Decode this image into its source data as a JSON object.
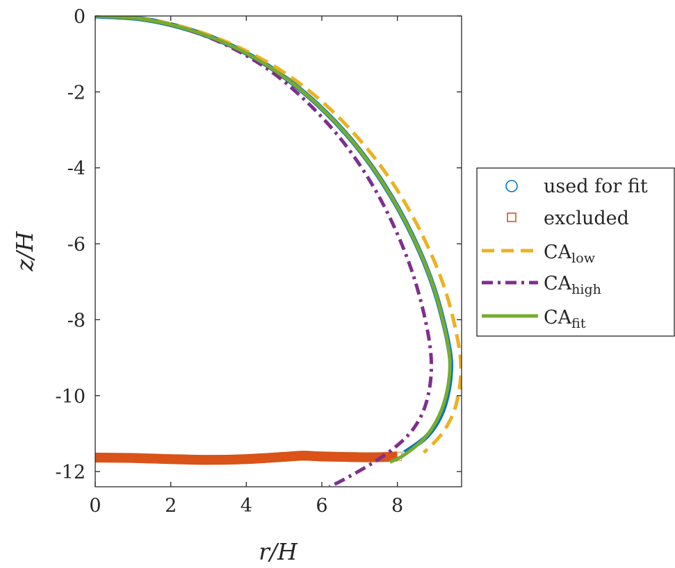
{
  "chart_data": {
    "type": "line",
    "xlabel": "r/H",
    "ylabel": "z/H",
    "xlim": [
      0,
      9.7
    ],
    "ylim": [
      -12.4,
      0
    ],
    "xticks": [
      0,
      2,
      4,
      6,
      8
    ],
    "yticks": [
      0,
      -2,
      -4,
      -6,
      -8,
      -10,
      -12
    ],
    "grid": false,
    "legend_position": "outside-right",
    "series": [
      {
        "name": "used for fit",
        "marker": "circle",
        "color": "#0072BD",
        "points": [
          [
            0,
            0
          ],
          [
            1.24,
            -0.08
          ],
          [
            2.45,
            -0.35
          ],
          [
            3.64,
            -0.8
          ],
          [
            4.78,
            -1.45
          ],
          [
            5.85,
            -2.3
          ],
          [
            6.81,
            -3.3
          ],
          [
            7.65,
            -4.45
          ],
          [
            8.38,
            -5.75
          ],
          [
            8.96,
            -7.15
          ],
          [
            9.35,
            -8.65
          ],
          [
            9.4,
            -9.5
          ],
          [
            9.2,
            -10.4
          ],
          [
            8.8,
            -11.05
          ],
          [
            8.2,
            -11.5
          ]
        ]
      },
      {
        "name": "excluded",
        "marker": "square",
        "color": "#D95319",
        "points": [
          [
            0,
            -11.63
          ],
          [
            1,
            -11.64
          ],
          [
            2,
            -11.67
          ],
          [
            3,
            -11.69
          ],
          [
            4,
            -11.67
          ],
          [
            5,
            -11.61
          ],
          [
            5.5,
            -11.58
          ],
          [
            6,
            -11.6
          ],
          [
            7,
            -11.62
          ],
          [
            7.5,
            -11.62
          ],
          [
            8,
            -11.6
          ]
        ]
      },
      {
        "name": "CA_low",
        "label_main": "CA",
        "label_sub": "low",
        "style": "dashed",
        "color": "#EDB120",
        "points": [
          [
            0,
            0
          ],
          [
            1.3,
            -0.08
          ],
          [
            2.58,
            -0.36
          ],
          [
            3.83,
            -0.84
          ],
          [
            5.02,
            -1.5
          ],
          [
            6.12,
            -2.36
          ],
          [
            7.12,
            -3.4
          ],
          [
            7.98,
            -4.56
          ],
          [
            8.7,
            -5.85
          ],
          [
            9.26,
            -7.2
          ],
          [
            9.6,
            -8.55
          ],
          [
            9.68,
            -9.45
          ],
          [
            9.52,
            -10.35
          ],
          [
            9.18,
            -11.0
          ],
          [
            8.7,
            -11.5
          ]
        ]
      },
      {
        "name": "CA_high",
        "label_main": "CA",
        "label_sub": "high",
        "style": "dashdot",
        "color": "#7E2F8E",
        "points": [
          [
            0,
            0
          ],
          [
            1.24,
            -0.08
          ],
          [
            2.44,
            -0.36
          ],
          [
            3.6,
            -0.83
          ],
          [
            4.68,
            -1.48
          ],
          [
            5.66,
            -2.32
          ],
          [
            6.55,
            -3.3
          ],
          [
            7.32,
            -4.42
          ],
          [
            7.96,
            -5.65
          ],
          [
            8.46,
            -6.95
          ],
          [
            8.8,
            -8.3
          ],
          [
            8.9,
            -9.3
          ],
          [
            8.76,
            -10.2
          ],
          [
            8.44,
            -10.85
          ],
          [
            7.95,
            -11.35
          ],
          [
            7.3,
            -11.8
          ],
          [
            6.6,
            -12.2
          ],
          [
            6.2,
            -12.4
          ]
        ]
      },
      {
        "name": "CA_fit",
        "label_main": "CA",
        "label_sub": "fit",
        "style": "solid",
        "color": "#77AC30",
        "points": [
          [
            0,
            0
          ],
          [
            1.24,
            -0.08
          ],
          [
            2.45,
            -0.35
          ],
          [
            3.64,
            -0.8
          ],
          [
            4.78,
            -1.45
          ],
          [
            5.85,
            -2.3
          ],
          [
            6.81,
            -3.3
          ],
          [
            7.65,
            -4.45
          ],
          [
            8.38,
            -5.75
          ],
          [
            8.96,
            -7.15
          ],
          [
            9.33,
            -8.6
          ],
          [
            9.38,
            -9.45
          ],
          [
            9.18,
            -10.35
          ],
          [
            8.78,
            -11.05
          ],
          [
            8.2,
            -11.55
          ],
          [
            7.8,
            -11.75
          ]
        ]
      }
    ]
  }
}
